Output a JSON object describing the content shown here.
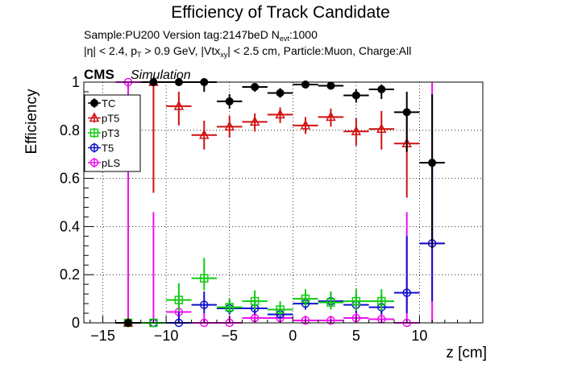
{
  "header": {
    "title": "Efficiency of Track Candidate",
    "subtitle_line1": "Sample:PU200   Version tag:2147beD  N",
    "subtitle_line1_sub": "evt",
    "subtitle_line1_tail": ":1000",
    "subtitle_line2": "|η| < 2.4, p",
    "subtitle_line2_sub1": "T",
    "subtitle_line2_mid": " > 0.9 GeV, |Vtx",
    "subtitle_line2_sub2": "xy",
    "subtitle_line2_tail": "| < 2.5 cm, Particle:Muon, Charge:All",
    "cms": "CMS",
    "simulation": "Simulation"
  },
  "chart_data": {
    "type": "scatter",
    "xlabel": "z [cm]",
    "ylabel": "Efficiency",
    "xlim": [
      -16.5,
      15.0
    ],
    "ylim": [
      0,
      1.0
    ],
    "x_ticks": [
      -15,
      -10,
      -5,
      0,
      5,
      10
    ],
    "x_tick_labels": [
      "−15",
      "−10",
      "−5",
      "0",
      "5",
      "10"
    ],
    "y_ticks": [
      0,
      0.2,
      0.4,
      0.6,
      0.8,
      1
    ],
    "y_tick_labels": [
      "0",
      "0.2",
      "0.4",
      "0.6",
      "0.8",
      "1"
    ],
    "grid": true,
    "legend_position": "top-left",
    "x_bin_half_width": 1,
    "series": [
      {
        "name": "TC",
        "color": "#000000",
        "marker": "filled-circle",
        "points": [
          {
            "x": -13,
            "y": 0.0,
            "lo": 0.0,
            "hi": 0.0
          },
          {
            "x": -11,
            "y": 1.0,
            "lo": 1.0,
            "hi": 1.0
          },
          {
            "x": -9,
            "y": 1.0,
            "lo": 1.0,
            "hi": 1.0
          },
          {
            "x": -7,
            "y": 1.0,
            "lo": 0.96,
            "hi": 1.0
          },
          {
            "x": -5,
            "y": 0.92,
            "lo": 0.89,
            "hi": 0.95
          },
          {
            "x": -3,
            "y": 0.98,
            "lo": 0.96,
            "hi": 0.995
          },
          {
            "x": -1,
            "y": 0.955,
            "lo": 0.935,
            "hi": 0.975
          },
          {
            "x": 1,
            "y": 0.99,
            "lo": 0.975,
            "hi": 1.0
          },
          {
            "x": 3,
            "y": 0.985,
            "lo": 0.97,
            "hi": 0.995
          },
          {
            "x": 5,
            "y": 0.945,
            "lo": 0.915,
            "hi": 0.97
          },
          {
            "x": 7,
            "y": 0.97,
            "lo": 0.93,
            "hi": 0.99
          },
          {
            "x": 9,
            "y": 0.875,
            "lo": 0.71,
            "hi": 0.96
          },
          {
            "x": 11,
            "y": 0.665,
            "lo": 0.31,
            "hi": 0.95
          }
        ]
      },
      {
        "name": "pT5",
        "color": "#d01010",
        "marker": "open-triangle",
        "points": [
          {
            "x": -13,
            "y": 0.0,
            "lo": 0.0,
            "hi": 0.0
          },
          {
            "x": -11,
            "y": 1.0,
            "lo": 0.54,
            "hi": 1.0
          },
          {
            "x": -9,
            "y": 0.9,
            "lo": 0.82,
            "hi": 0.96
          },
          {
            "x": -7,
            "y": 0.78,
            "lo": 0.72,
            "hi": 0.84
          },
          {
            "x": -5,
            "y": 0.815,
            "lo": 0.77,
            "hi": 0.86
          },
          {
            "x": -3,
            "y": 0.835,
            "lo": 0.795,
            "hi": 0.87
          },
          {
            "x": -1,
            "y": 0.865,
            "lo": 0.83,
            "hi": 0.895
          },
          {
            "x": 1,
            "y": 0.82,
            "lo": 0.785,
            "hi": 0.855
          },
          {
            "x": 3,
            "y": 0.855,
            "lo": 0.815,
            "hi": 0.89
          },
          {
            "x": 5,
            "y": 0.795,
            "lo": 0.735,
            "hi": 0.85
          },
          {
            "x": 7,
            "y": 0.805,
            "lo": 0.72,
            "hi": 0.88
          },
          {
            "x": 9,
            "y": 0.745,
            "lo": 0.52,
            "hi": 0.86
          }
        ]
      },
      {
        "name": "pT3",
        "color": "#10cc10",
        "marker": "open-square",
        "points": [
          {
            "x": -13,
            "y": 0.0,
            "lo": 0.0,
            "hi": 0.0
          },
          {
            "x": -11,
            "y": 0.0,
            "lo": 0.0,
            "hi": 0.0
          },
          {
            "x": -9,
            "y": 0.095,
            "lo": 0.05,
            "hi": 0.165
          },
          {
            "x": -7,
            "y": 0.185,
            "lo": 0.135,
            "hi": 0.27
          },
          {
            "x": -5,
            "y": 0.065,
            "lo": 0.04,
            "hi": 0.1
          },
          {
            "x": -3,
            "y": 0.09,
            "lo": 0.055,
            "hi": 0.135
          },
          {
            "x": -1,
            "y": 0.055,
            "lo": 0.03,
            "hi": 0.09
          },
          {
            "x": 1,
            "y": 0.1,
            "lo": 0.07,
            "hi": 0.14
          },
          {
            "x": 3,
            "y": 0.085,
            "lo": 0.055,
            "hi": 0.13
          },
          {
            "x": 5,
            "y": 0.09,
            "lo": 0.05,
            "hi": 0.14
          },
          {
            "x": 7,
            "y": 0.09,
            "lo": 0.05,
            "hi": 0.14
          }
        ]
      },
      {
        "name": "T5",
        "color": "#1010cc",
        "marker": "open-circle",
        "points": [
          {
            "x": -13,
            "y": 0.0,
            "lo": 0.0,
            "hi": 0.0
          },
          {
            "x": -11,
            "y": 0.0,
            "lo": 0.0,
            "hi": 0.0
          },
          {
            "x": -9,
            "y": 0.0,
            "lo": 0.0,
            "hi": 0.045
          },
          {
            "x": -7,
            "y": 0.075,
            "lo": 0.04,
            "hi": 0.13
          },
          {
            "x": -5,
            "y": 0.06,
            "lo": 0.035,
            "hi": 0.095
          },
          {
            "x": -3,
            "y": 0.06,
            "lo": 0.035,
            "hi": 0.095
          },
          {
            "x": -1,
            "y": 0.035,
            "lo": 0.018,
            "hi": 0.06
          },
          {
            "x": 1,
            "y": 0.08,
            "lo": 0.055,
            "hi": 0.115
          },
          {
            "x": 3,
            "y": 0.09,
            "lo": 0.06,
            "hi": 0.13
          },
          {
            "x": 5,
            "y": 0.075,
            "lo": 0.04,
            "hi": 0.12
          },
          {
            "x": 7,
            "y": 0.065,
            "lo": 0.035,
            "hi": 0.115
          },
          {
            "x": 9,
            "y": 0.125,
            "lo": 0.04,
            "hi": 0.36
          },
          {
            "x": 11,
            "y": 0.33,
            "lo": 0.09,
            "hi": 0.675
          }
        ]
      },
      {
        "name": "pLS",
        "color": "#ee10ee",
        "marker": "open-circle",
        "points": [
          {
            "x": -13,
            "y": 1.0,
            "lo": 0.0,
            "hi": 1.0
          },
          {
            "x": -11,
            "y": 0.0,
            "lo": 0.0,
            "hi": 0.46
          },
          {
            "x": -9,
            "y": 0.045,
            "lo": 0.02,
            "hi": 0.11
          },
          {
            "x": -7,
            "y": 0.0,
            "lo": 0.0,
            "hi": 0.04
          },
          {
            "x": -5,
            "y": 0.0,
            "lo": 0.0,
            "hi": 0.03
          },
          {
            "x": -3,
            "y": 0.02,
            "lo": 0.008,
            "hi": 0.05
          },
          {
            "x": -1,
            "y": 0.02,
            "lo": 0.008,
            "hi": 0.045
          },
          {
            "x": 1,
            "y": 0.01,
            "lo": 0.003,
            "hi": 0.03
          },
          {
            "x": 3,
            "y": 0.01,
            "lo": 0.003,
            "hi": 0.03
          },
          {
            "x": 5,
            "y": 0.02,
            "lo": 0.006,
            "hi": 0.05
          },
          {
            "x": 7,
            "y": 0.015,
            "lo": 0.004,
            "hi": 0.05
          },
          {
            "x": 9,
            "y": 0.0,
            "lo": 0.0,
            "hi": 0.46
          },
          {
            "x": 11,
            "y": 0.33,
            "lo": 0.0,
            "hi": 1.0
          }
        ]
      }
    ]
  }
}
